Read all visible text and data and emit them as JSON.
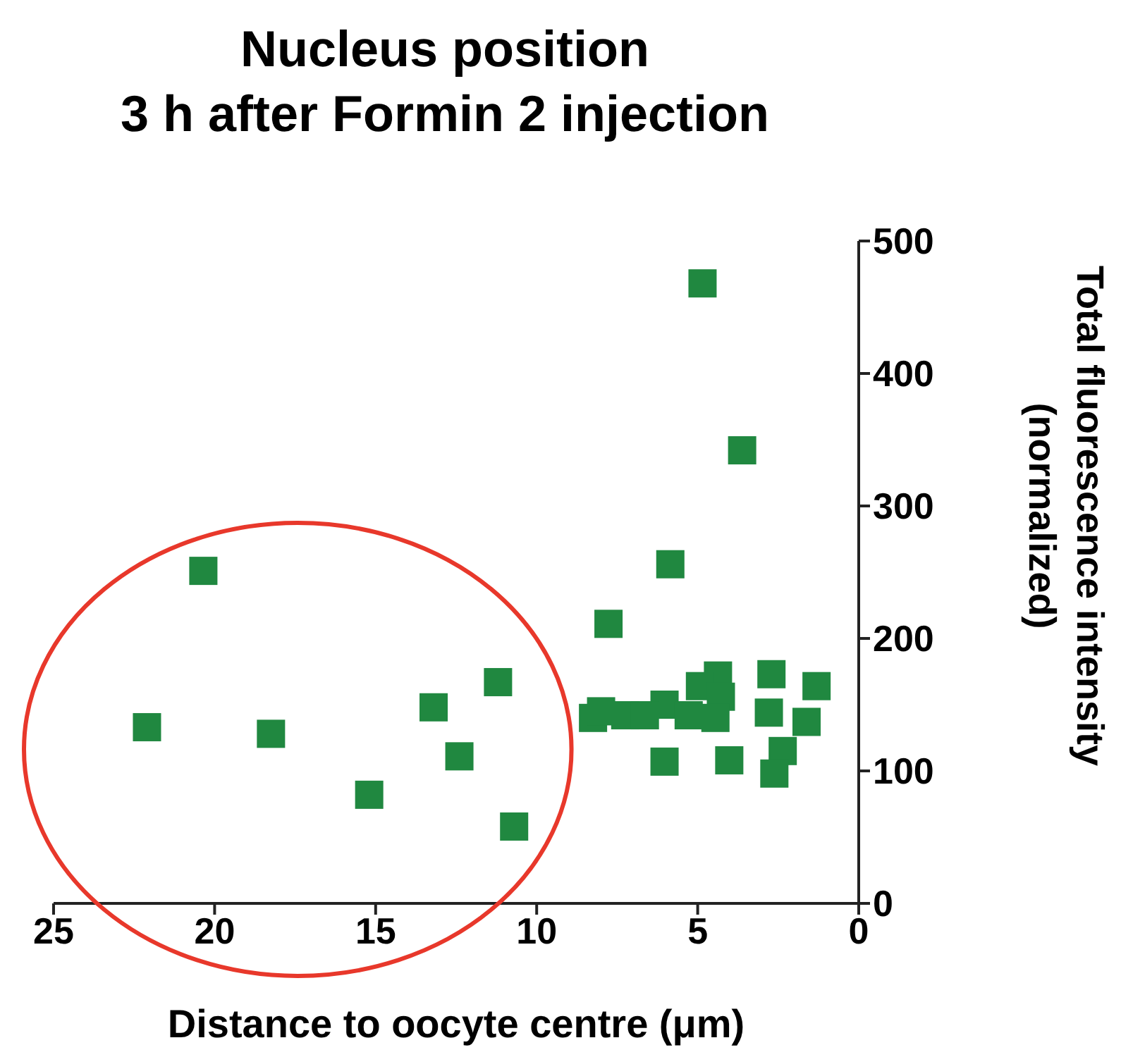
{
  "chart_data": {
    "type": "scatter",
    "title": "Nucleus position\n3 h after Formin 2 injection",
    "xlabel": "Distance to oocyte centre (μm)",
    "ylabel": "Total fluorescence intensity\n(normalized)",
    "xlim": [
      25,
      0
    ],
    "xticks": [
      25,
      20,
      15,
      10,
      5,
      0
    ],
    "ylim": [
      0,
      500
    ],
    "yticks": [
      0,
      100,
      200,
      300,
      400,
      500
    ],
    "marker": "square",
    "grid": false,
    "legend": false,
    "series": [
      {
        "color": "#208840",
        "x": [
          20.35,
          22.1,
          18.25,
          15.2,
          13.2,
          12.4,
          11.2,
          10.7,
          4.85,
          3.62,
          5.85,
          7.77,
          4.37,
          2.71,
          1.31,
          4.93,
          4.28,
          6.03,
          8.25,
          7.25,
          6.64,
          5.28,
          4.45,
          2.79,
          1.62,
          2.36,
          2.62,
          6.03,
          4.02,
          8.0
        ],
        "values": [
          251,
          133,
          128,
          82,
          148,
          111,
          167,
          58,
          468,
          342,
          256,
          211,
          172,
          173,
          164,
          164,
          156,
          150,
          140,
          142,
          142,
          142,
          140,
          144,
          137,
          115,
          98,
          107,
          108,
          145
        ]
      }
    ]
  }
}
